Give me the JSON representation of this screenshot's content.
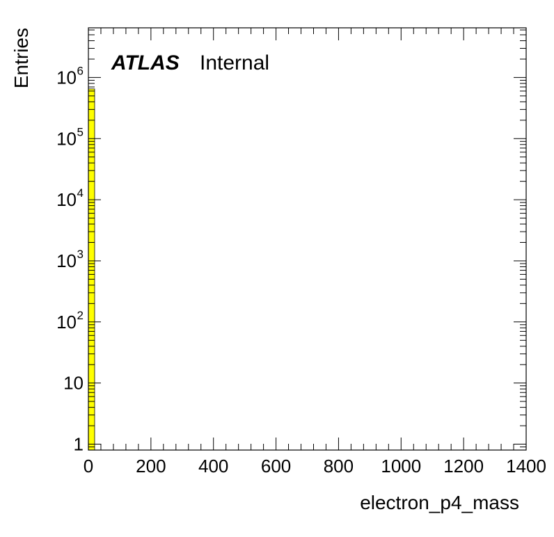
{
  "chart_data": {
    "type": "bar",
    "title": "",
    "xlabel": "electron_p4_mass",
    "ylabel": "Entries",
    "y_scale": "log",
    "xlim": [
      0,
      1400
    ],
    "ylim": [
      0.8,
      6500000
    ],
    "x_ticks": [
      0,
      200,
      400,
      600,
      800,
      1000,
      1200,
      1400
    ],
    "x_tick_labels": [
      "0",
      "200",
      "400",
      "600",
      "800",
      "1000",
      "1200",
      "1400"
    ],
    "y_ticks": [
      {
        "value": 1,
        "base": "1",
        "exp": ""
      },
      {
        "value": 10,
        "base": "10",
        "exp": ""
      },
      {
        "value": 100,
        "base": "10",
        "exp": "2"
      },
      {
        "value": 1000,
        "base": "10",
        "exp": "3"
      },
      {
        "value": 10000,
        "base": "10",
        "exp": "4"
      },
      {
        "value": 100000,
        "base": "10",
        "exp": "5"
      },
      {
        "value": 1000000,
        "base": "10",
        "exp": "6"
      }
    ],
    "bins": [
      {
        "x_low": 0,
        "x_high": 20,
        "value": 650000
      }
    ],
    "fill_color": "#ffff00",
    "grid": false,
    "legend": "none"
  },
  "labels": {
    "experiment": "ATLAS",
    "status": "Internal"
  }
}
